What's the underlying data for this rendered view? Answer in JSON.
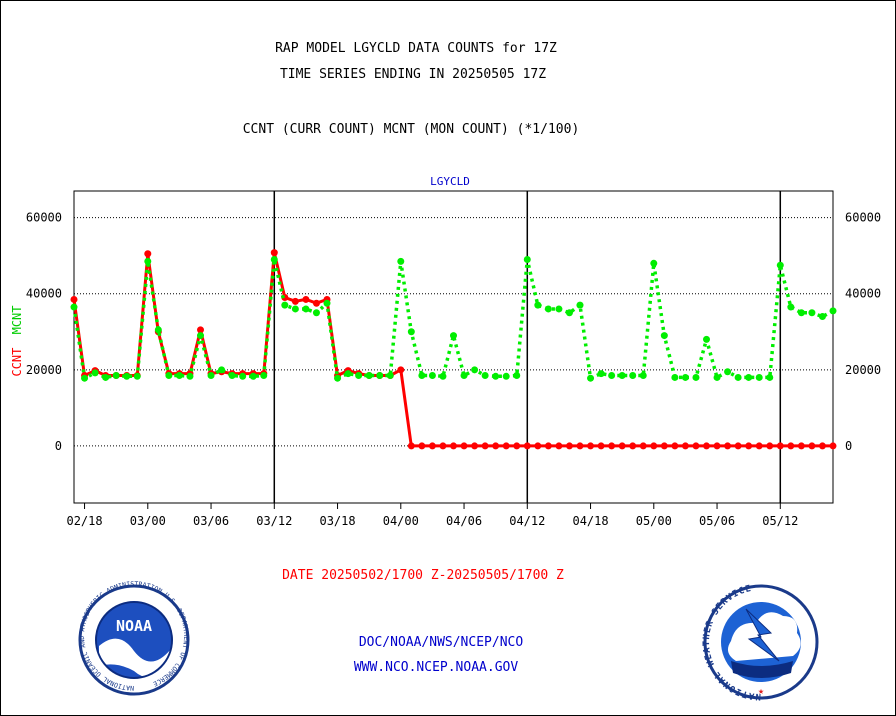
{
  "header": {
    "title_line1": "RAP MODEL LGYCLD DATA COUNTS for 17Z",
    "title_line2": "TIME SERIES ENDING IN 20250505 17Z",
    "subtitle": "CCNT (CURR COUNT) MCNT (MON COUNT) (*1/100)",
    "panel_label": "LGYCLD"
  },
  "footer": {
    "date_range": "DATE 20250502/1700 Z-20250505/1700 Z",
    "link1": "DOC/NOAA/NWS/NCEP/NCO",
    "link2": "WWW.NCO.NCEP.NOAA.GOV",
    "noaa_logo_text": "NOAA",
    "noaa_ring_text": "NATIONAL OCEANIC AND ATMOSPHERIC ADMINISTRATION U.S. DEPARTMENT OF COMMERCE",
    "nws_ring_text": "NATIONAL WEATHER SERVICE"
  },
  "colors": {
    "ccnt": "#ff0000",
    "mcnt": "#00ee00",
    "title": "#000000",
    "panel_label": "#0000cc",
    "date": "#ff0000",
    "links": "#0000cc"
  },
  "chart_data": {
    "type": "line",
    "xlim": [
      0,
      72
    ],
    "ylim": [
      -15000,
      67000
    ],
    "y_ticks": [
      0,
      20000,
      40000,
      60000
    ],
    "y_tick_labels": [
      "0",
      "20000",
      "40000",
      "60000"
    ],
    "x_ticks": [
      1,
      7,
      13,
      19,
      25,
      31,
      37,
      43,
      49,
      55,
      61,
      67
    ],
    "x_tick_labels": [
      "02/18",
      "03/00",
      "03/06",
      "03/12",
      "03/18",
      "04/00",
      "04/06",
      "04/12",
      "04/18",
      "05/00",
      "05/06",
      "05/12"
    ],
    "day_separators": [
      19,
      43,
      67
    ],
    "ylabel_left_ccnt": "CCNT",
    "ylabel_left_mcnt": "MCNT",
    "grid": "horizontal-dotted",
    "series": [
      {
        "name": "CCNT",
        "x": [
          0,
          1,
          2,
          3,
          4,
          5,
          6,
          7,
          8,
          9,
          10,
          11,
          12,
          13,
          14,
          15,
          16,
          17,
          18,
          19,
          20,
          21,
          22,
          23,
          24,
          25,
          26,
          27,
          28,
          29,
          30,
          31,
          32,
          33,
          34,
          35,
          36,
          37,
          38,
          39,
          40,
          41,
          42,
          43,
          44,
          45,
          46,
          47,
          48,
          49,
          50,
          51,
          52,
          53,
          54,
          55,
          56,
          57,
          58,
          59,
          60,
          61,
          62,
          63,
          64,
          65,
          66,
          67,
          68,
          69,
          70,
          71,
          72
        ],
        "values": [
          38500,
          18500,
          19800,
          18500,
          18500,
          18500,
          18500,
          50500,
          30000,
          19000,
          19000,
          19000,
          30500,
          19000,
          19500,
          19000,
          19000,
          19000,
          19000,
          50800,
          39000,
          38000,
          38500,
          37500,
          38500,
          18500,
          19800,
          19000,
          18500,
          18500,
          18500,
          20000,
          0,
          0,
          0,
          0,
          0,
          0,
          0,
          0,
          0,
          0,
          0,
          0,
          0,
          0,
          0,
          0,
          0,
          0,
          0,
          0,
          0,
          0,
          0,
          0,
          0,
          0,
          0,
          0,
          0,
          0,
          0,
          0,
          0,
          0,
          0,
          0,
          0,
          0,
          0,
          0,
          0
        ]
      },
      {
        "name": "MCNT",
        "x": [
          0,
          1,
          2,
          3,
          4,
          5,
          6,
          7,
          8,
          9,
          10,
          11,
          12,
          13,
          14,
          15,
          16,
          17,
          18,
          19,
          20,
          21,
          22,
          23,
          24,
          25,
          26,
          27,
          28,
          29,
          30,
          31,
          32,
          33,
          34,
          35,
          36,
          37,
          38,
          39,
          40,
          41,
          42,
          43,
          44,
          45,
          46,
          47,
          48,
          49,
          50,
          51,
          52,
          53,
          54,
          55,
          56,
          57,
          58,
          59,
          60,
          61,
          62,
          63,
          64,
          65,
          66,
          67,
          68,
          69,
          70,
          71,
          72
        ],
        "values": [
          36500,
          17800,
          19200,
          18000,
          18500,
          18300,
          18300,
          48500,
          30500,
          18500,
          18500,
          18300,
          29000,
          18500,
          20000,
          18500,
          18300,
          18300,
          18500,
          49000,
          37000,
          36000,
          36000,
          35000,
          37500,
          17800,
          19000,
          18500,
          18500,
          18500,
          18500,
          48500,
          30000,
          18500,
          18500,
          18300,
          29000,
          18500,
          20000,
          18500,
          18300,
          18300,
          18500,
          49000,
          37000,
          36000,
          36000,
          35000,
          37000,
          17800,
          19000,
          18500,
          18500,
          18500,
          18500,
          48000,
          29000,
          18000,
          18000,
          18000,
          28000,
          18000,
          19500,
          18000,
          18000,
          18000,
          18000,
          47500,
          36500,
          35000,
          35000,
          34000,
          35500
        ]
      }
    ]
  }
}
